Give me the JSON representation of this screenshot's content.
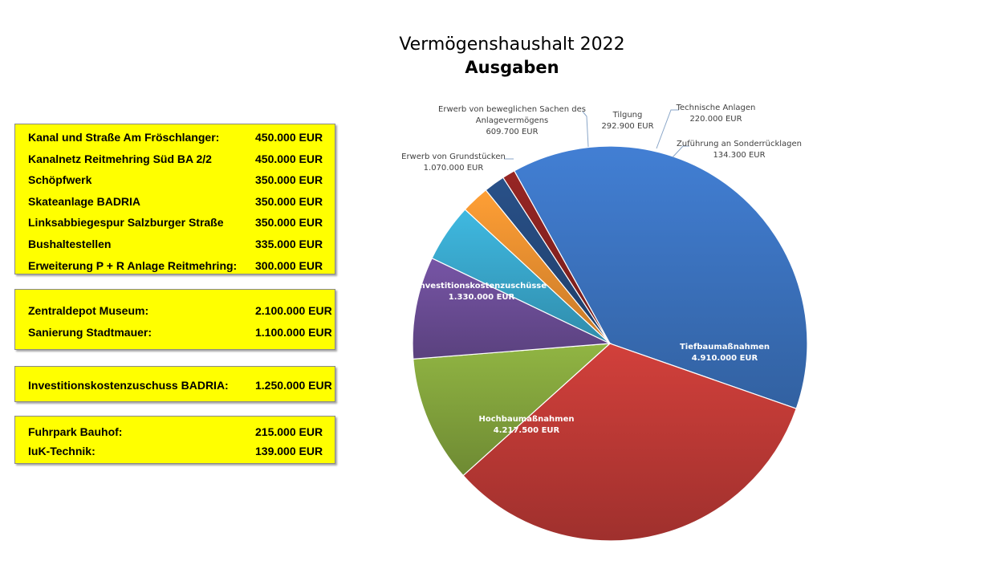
{
  "title": "Vermögenshaushalt 2022",
  "subtitle": "Ausgaben",
  "boxes": [
    {
      "rows": [
        {
          "name": "Kanal und Straße Am Fröschlanger:",
          "value": "450.000 EUR"
        },
        {
          "name": "Kanalnetz Reitmehring Süd BA 2/2",
          "value": "450.000 EUR"
        },
        {
          "name": "Schöpfwerk",
          "value": "350.000 EUR"
        },
        {
          "name": "Skateanlage BADRIA",
          "value": "350.000 EUR"
        },
        {
          "name": "Linksabbiegespur Salzburger Straße",
          "value": "350.000 EUR"
        },
        {
          "name": "Bushaltestellen",
          "value": "335.000 EUR"
        },
        {
          "name": "Erweiterung P + R Anlage Reitmehring:",
          "value": "300.000 EUR"
        }
      ]
    },
    {
      "rows": [
        {
          "name": "Zentraldepot Museum:",
          "value": "2.100.000 EUR"
        },
        {
          "name": "Sanierung Stadtmauer:",
          "value": "1.100.000 EUR"
        }
      ]
    },
    {
      "rows": [
        {
          "name": "Investitionskostenzuschuss BADRIA:",
          "value": "1.250.000 EUR"
        }
      ]
    },
    {
      "rows": [
        {
          "name": "Fuhrpark Bauhof:",
          "value": "215.000 EUR"
        },
        {
          "name": "IuK-Technik:",
          "value": "139.000 EUR"
        }
      ]
    }
  ],
  "chart_data": {
    "type": "pie",
    "title": "Vermögenshaushalt 2022",
    "subtitle": "Ausgaben",
    "slices": [
      {
        "label": "Tiefbaumaßnahmen",
        "value": 4910000,
        "display": "4.910.000 EUR",
        "color": "#3d76c4"
      },
      {
        "label": "Hochbaumaßnahmen",
        "value": 4217500,
        "display": "4.217.500 EUR",
        "color": "#c23b37"
      },
      {
        "label": "Investitionskostenzuschüsse",
        "value": 1330000,
        "display": "1.330.000 EUR",
        "color": "#86a83e"
      },
      {
        "label": "Erwerb von Grundstücken",
        "value": 1070000,
        "display": "1.070.000 EUR",
        "color": "#6e4f9a"
      },
      {
        "label": "Erwerb von beweglichen Sachen des Anlagevermögens",
        "value": 609700,
        "display": "609.700 EUR",
        "color": "#3aabd0"
      },
      {
        "label": "Tilgung",
        "value": 292900,
        "display": "292.900 EUR",
        "color": "#f39331"
      },
      {
        "label": "Technische Anlagen",
        "value": 220000,
        "display": "220.000 EUR",
        "color": "#264b7f"
      },
      {
        "label": "Zuführung an Sonderrücklagen",
        "value": 134300,
        "display": "134.300 EUR",
        "color": "#8c2321"
      }
    ]
  }
}
